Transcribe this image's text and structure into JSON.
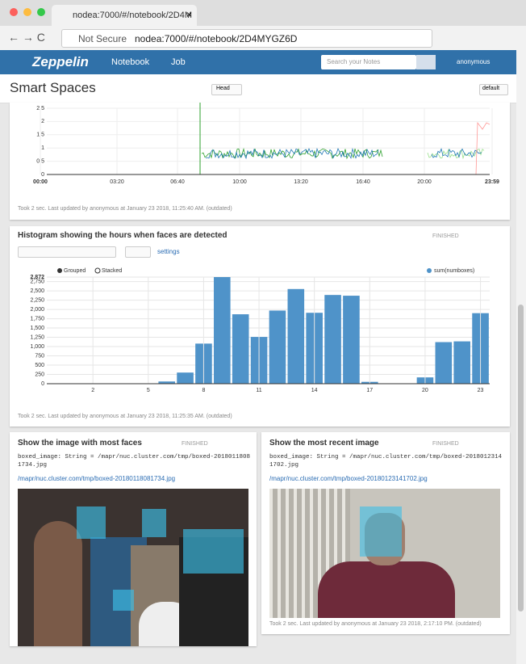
{
  "browser": {
    "tab_title": "nodea:7000/#/notebook/2D4M",
    "not_secure": "Not Secure",
    "url": "nodea:7000/#/notebook/2D4MYGZ6D"
  },
  "navbar": {
    "brand": "Zeppelin",
    "menu": [
      "Notebook",
      "Job"
    ],
    "search_placeholder": "Search your Notes",
    "user": "anonymous"
  },
  "notebook": {
    "title": "Smart Spaces",
    "branch": "Head",
    "interpreter": "default"
  },
  "paragraphs": [
    {
      "footer": "Took 2 sec. Last updated by anonymous at January 23 2018, 11:25:40 AM. (outdated)",
      "chart": {
        "type": "line",
        "x_labels": [
          "00:00",
          "03:20",
          "06:40",
          "10:00",
          "13:20",
          "16:40",
          "20:00",
          "23:59"
        ],
        "ylim": [
          0,
          2.5
        ],
        "yticks": [
          0,
          0.5,
          1,
          1.5,
          2,
          2.5
        ]
      }
    },
    {
      "title": "Histogram showing the hours when faces are detected",
      "status": "FINISHED",
      "settings": "settings",
      "modes": [
        "Grouped",
        "Stacked"
      ],
      "footer": "Took 2 sec. Last updated by anonymous at January 23 2018, 11:25:35 AM. (outdated)",
      "chart": {
        "type": "bar",
        "categories": [
          null,
          null,
          "2",
          null,
          null,
          "5",
          null,
          null,
          "8",
          null,
          null,
          "11",
          null,
          null,
          "14",
          null,
          null,
          "17",
          null,
          null,
          "20",
          null,
          null,
          "23"
        ],
        "series": [
          {
            "name": "sum(numboxes)",
            "color": "#4f93c9",
            "values": [
              10,
              5,
              5,
              5,
              5,
              5,
              60,
              300,
              1080,
              2872,
              1870,
              1260,
              1970,
              2550,
              1910,
              2390,
              2370,
              50,
              5,
              10,
              170,
              1120,
              1140,
              1900
            ]
          }
        ],
        "ylim": [
          0,
          2872
        ],
        "yticks": [
          0,
          250,
          500,
          750,
          {
            "value": 1000,
            "label": "1,000"
          },
          {
            "value": 1250,
            "label": "1,250"
          },
          {
            "value": 1500,
            "label": "1,500"
          },
          {
            "value": 1750,
            "label": "1,750"
          },
          {
            "value": 2000,
            "label": "2,000"
          },
          {
            "value": 2250,
            "label": "2,250"
          },
          {
            "value": 2500,
            "label": "2,500"
          },
          {
            "value": 2750,
            "label": "2,750"
          },
          {
            "value": 2872,
            "label": "2,872"
          }
        ],
        "grid": true
      }
    },
    {
      "title": "Show the image with most faces",
      "status": "FINISHED",
      "output": "boxed_image: String = /mapr/nuc.cluster.com/tmp/boxed-20180118081734.jpg",
      "link": "/mapr/nuc.cluster.com/tmp/boxed-20180118081734.jpg"
    },
    {
      "title": "Show the most recent image",
      "status": "FINISHED",
      "output": "boxed_image: String = /mapr/nuc.cluster.com/tmp/boxed-20180123141702.jpg",
      "link": "/mapr/nuc.cluster.com/tmp/boxed-20180123141702.jpg",
      "footer": "Took 2 sec. Last updated by anonymous at January 23 2018, 2:17:10 PM. (outdated)"
    }
  ]
}
